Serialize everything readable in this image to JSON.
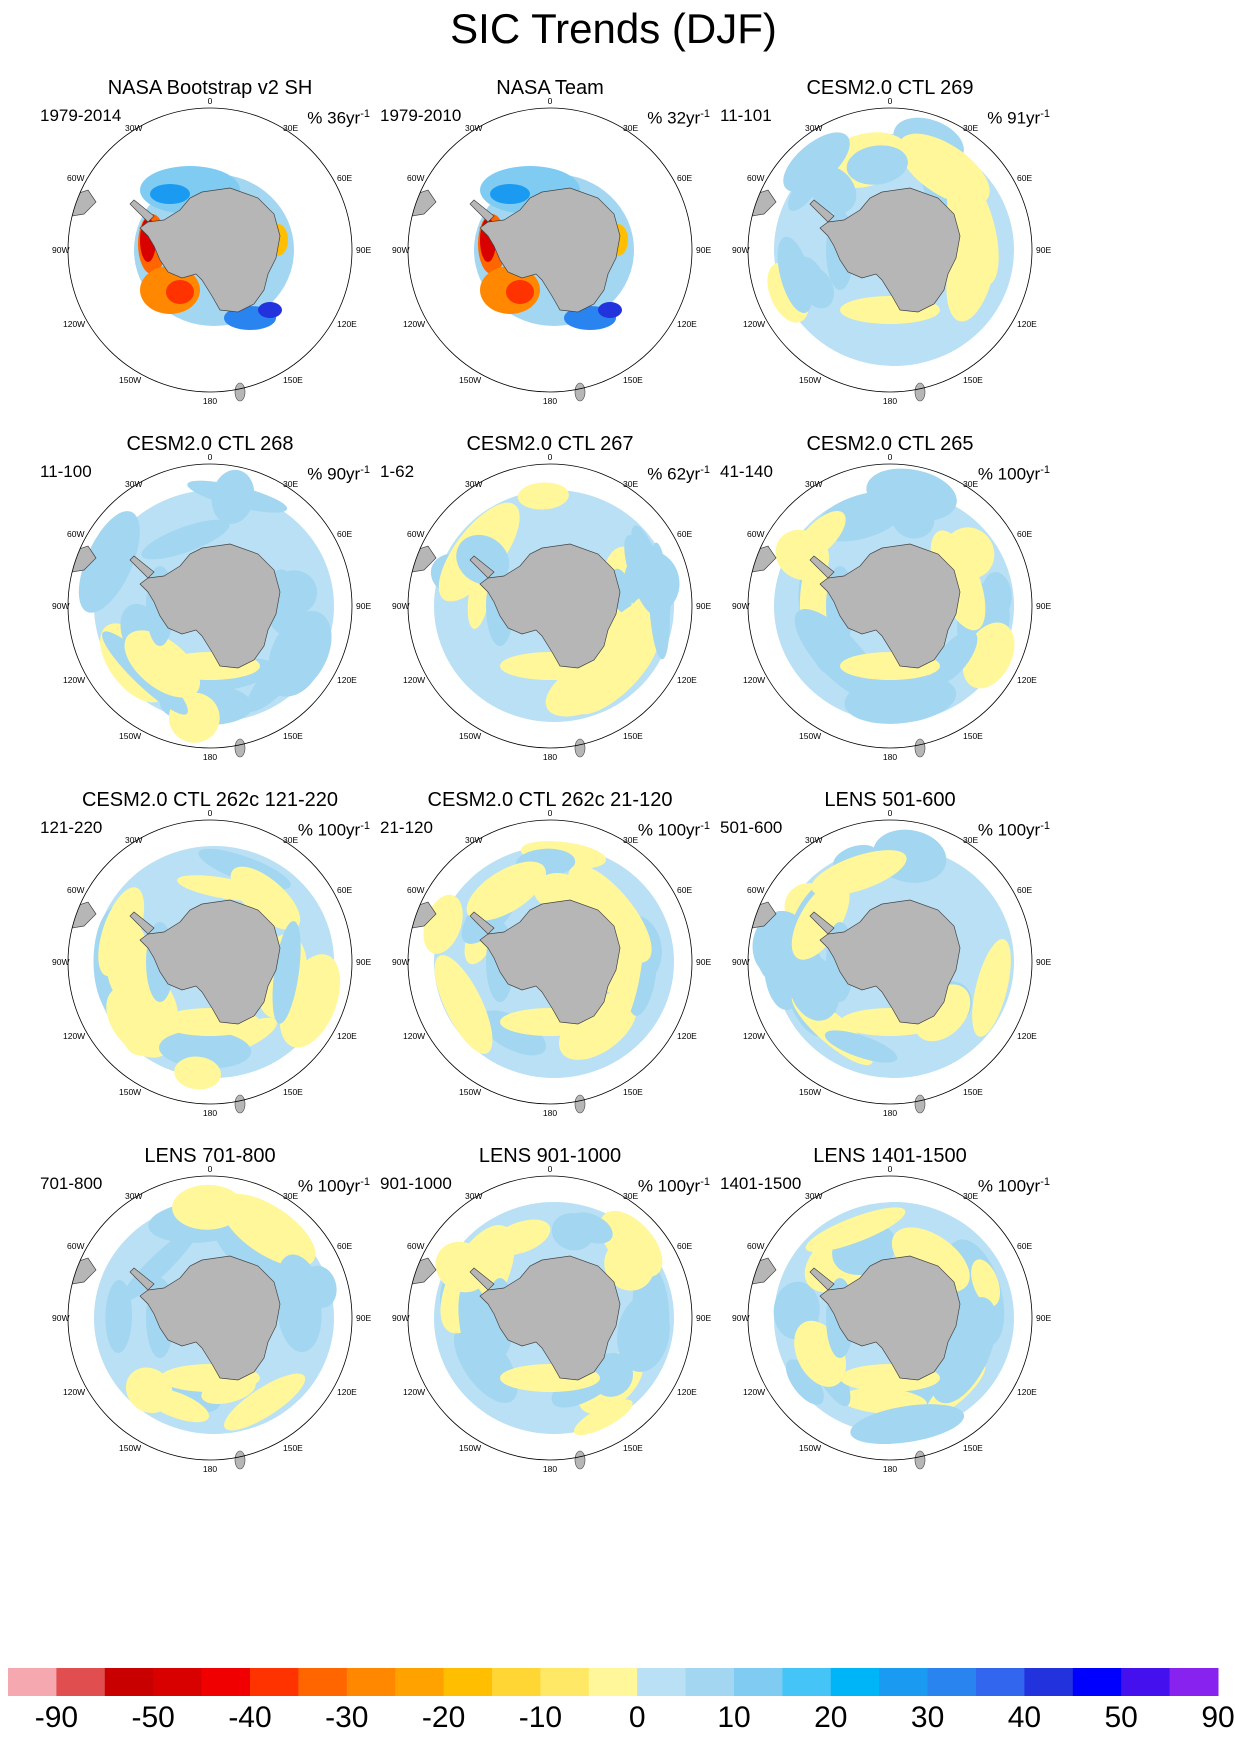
{
  "title": "SIC Trends (DJF)",
  "panels": [
    {
      "title": "NASA Bootstrap v2 SH",
      "period": "1979-2014",
      "scale_prefix": "% 36yr",
      "scale_exp": "-1",
      "pattern": "obs"
    },
    {
      "title": "NASA Team",
      "period": "1979-2010",
      "scale_prefix": "% 32yr",
      "scale_exp": "-1",
      "pattern": "obs2"
    },
    {
      "title": "CESM2.0 CTL 269",
      "period": "11-101",
      "scale_prefix": "% 91yr",
      "scale_exp": "-1",
      "pattern": "m1"
    },
    {
      "title": "CESM2.0 CTL 268",
      "period": "11-100",
      "scale_prefix": "% 90yr",
      "scale_exp": "-1",
      "pattern": "m2"
    },
    {
      "title": "CESM2.0 CTL 267",
      "period": "1-62",
      "scale_prefix": "% 62yr",
      "scale_exp": "-1",
      "pattern": "m3"
    },
    {
      "title": "CESM2.0 CTL 265",
      "period": "41-140",
      "scale_prefix": "% 100yr",
      "scale_exp": "-1",
      "pattern": "m4"
    },
    {
      "title": "CESM2.0 CTL 262c 121-220",
      "period": "121-220",
      "scale_prefix": "% 100yr",
      "scale_exp": "-1",
      "pattern": "m5"
    },
    {
      "title": "CESM2.0 CTL 262c 21-120",
      "period": "21-120",
      "scale_prefix": "% 100yr",
      "scale_exp": "-1",
      "pattern": "m6"
    },
    {
      "title": "LENS 501-600",
      "period": "501-600",
      "scale_prefix": "% 100yr",
      "scale_exp": "-1",
      "pattern": "m7"
    },
    {
      "title": "LENS 701-800",
      "period": "701-800",
      "scale_prefix": "% 100yr",
      "scale_exp": "-1",
      "pattern": "m8"
    },
    {
      "title": "LENS 901-1000",
      "period": "901-1000",
      "scale_prefix": "% 100yr",
      "scale_exp": "-1",
      "pattern": "m9"
    },
    {
      "title": "LENS 1401-1500",
      "period": "1401-1500",
      "scale_prefix": "% 100yr",
      "scale_exp": "-1",
      "pattern": "m10"
    }
  ],
  "longitude_labels": {
    "top": "0",
    "bottom": "180",
    "left": "90W",
    "right": "90E",
    "upper_left_near": "30W",
    "upper_right_near": "30E",
    "upper_left_far": "60W",
    "upper_right_far": "60E",
    "lower_left_far": "120W",
    "lower_right_far": "120E",
    "lower_left_near": "150W",
    "lower_right_near": "150E"
  },
  "colorbar": {
    "colors": [
      "#f6a8b0",
      "#e04e50",
      "#c80000",
      "#d90000",
      "#f00000",
      "#ff3300",
      "#ff6600",
      "#ff8800",
      "#ffa200",
      "#ffbe00",
      "#ffd633",
      "#ffe866",
      "#fff799",
      "#b9e0f4",
      "#a3d6f0",
      "#80cbf2",
      "#44c4f7",
      "#00b5f7",
      "#1a9af0",
      "#2a84f0",
      "#3366ee",
      "#2233dd",
      "#0000ff",
      "#4411ee",
      "#8822ee"
    ],
    "tick_labels": [
      "-90",
      "-50",
      "-40",
      "-30",
      "-20",
      "-10",
      "0",
      "10",
      "20",
      "30",
      "40",
      "50",
      "90"
    ]
  },
  "colors": {
    "land": "#b6b6b6",
    "positive_light": "#fff799",
    "negative_light": "#b9e0f4"
  }
}
